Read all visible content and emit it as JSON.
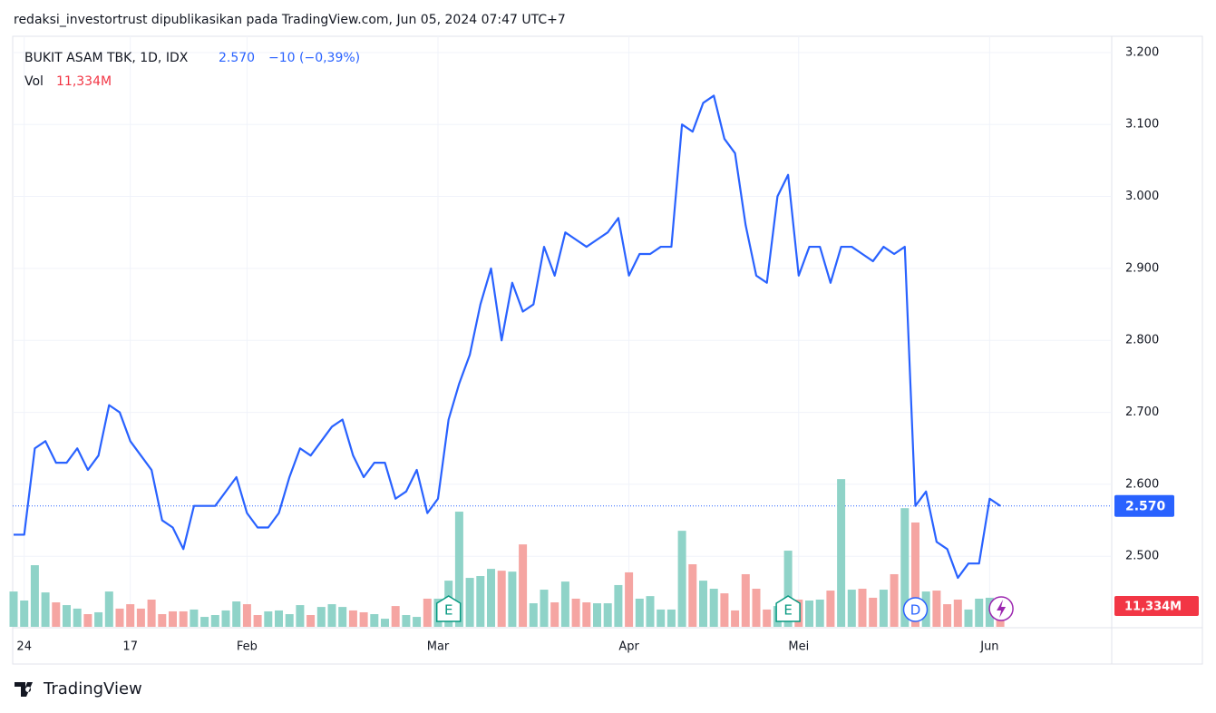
{
  "publisher": "redaksi_investortrust dipublikasikan pada TradingView.com, Jun 05, 2024 07:47 UTC+7",
  "footer": "TradingView",
  "chart_data": {
    "type": "line",
    "categories": [
      null,
      "24",
      null,
      null,
      null,
      null,
      null,
      null,
      null,
      null,
      null,
      "17",
      null,
      null,
      null,
      null,
      null,
      null,
      null,
      null,
      null,
      null,
      "Feb",
      null,
      null,
      null,
      null,
      null,
      null,
      null,
      null,
      null,
      null,
      null,
      null,
      null,
      null,
      null,
      null,
      null,
      "Mar",
      null,
      null,
      null,
      null,
      null,
      null,
      null,
      null,
      null,
      null,
      null,
      null,
      null,
      null,
      null,
      null,
      null,
      "Apr",
      null,
      null,
      null,
      null,
      null,
      null,
      null,
      null,
      null,
      null,
      null,
      null,
      null,
      null,
      null,
      "Mei",
      null,
      null,
      null,
      null,
      null,
      null,
      null,
      null,
      null,
      null,
      null,
      null,
      null,
      null,
      null,
      null,
      null,
      "Jun",
      null
    ],
    "events": [
      null,
      null,
      null,
      null,
      null,
      null,
      null,
      null,
      null,
      null,
      null,
      null,
      null,
      null,
      null,
      null,
      null,
      null,
      null,
      null,
      null,
      null,
      null,
      null,
      null,
      null,
      null,
      null,
      null,
      null,
      null,
      null,
      null,
      null,
      null,
      null,
      null,
      null,
      null,
      null,
      null,
      "E",
      null,
      null,
      null,
      null,
      null,
      null,
      null,
      null,
      null,
      null,
      null,
      null,
      null,
      null,
      null,
      null,
      null,
      null,
      null,
      null,
      null,
      null,
      null,
      null,
      null,
      null,
      null,
      null,
      null,
      null,
      null,
      "E",
      null,
      null,
      null,
      null,
      null,
      null,
      null,
      null,
      null,
      null,
      null,
      "D",
      null,
      null,
      null,
      null,
      null,
      null,
      null,
      null
    ],
    "series": [
      {
        "name": "BUKIT ASAM TBK, 1D, IDX",
        "color": "#2962ff",
        "last_label": "2.570",
        "change": "−10 (−0,39%)",
        "values": [
          2530,
          2530,
          2650,
          2660,
          2630,
          2630,
          2650,
          2620,
          2640,
          2710,
          2700,
          2660,
          2640,
          2620,
          2550,
          2540,
          2510,
          2570,
          2570,
          2570,
          2590,
          2610,
          2560,
          2540,
          2540,
          2560,
          2610,
          2650,
          2640,
          2660,
          2680,
          2690,
          2640,
          2610,
          2630,
          2630,
          2580,
          2590,
          2620,
          2560,
          2580,
          2690,
          2740,
          2780,
          2850,
          2900,
          2800,
          2880,
          2840,
          2850,
          2930,
          2890,
          2950,
          2940,
          2930,
          2940,
          2950,
          2970,
          2890,
          2920,
          2920,
          2930,
          2930,
          3100,
          3090,
          3130,
          3140,
          3080,
          3060,
          2960,
          2890,
          2880,
          3000,
          3030,
          2890,
          2930,
          2930,
          2880,
          2930,
          2930,
          2920,
          2910,
          2930,
          2920,
          2930,
          2570,
          2590,
          2520,
          2510,
          2470,
          2490,
          2490,
          2580,
          2570
        ]
      },
      {
        "name": "Vol",
        "type": "bar",
        "axis": "y2",
        "up_color": "#8fd3c8",
        "down_color": "#f5a5a2",
        "tag_color": "#f23645",
        "last_label": "11,334M",
        "values": [
          19.2,
          14.3,
          33.5,
          18.7,
          13.3,
          11.8,
          9.9,
          6.9,
          7.9,
          19.2,
          9.9,
          12.3,
          9.9,
          14.8,
          6.9,
          8.4,
          8.4,
          9.4,
          5.4,
          6.4,
          8.9,
          13.8,
          12.3,
          6.4,
          8.4,
          8.9,
          6.9,
          11.8,
          6.4,
          10.8,
          12.3,
          10.8,
          8.9,
          7.9,
          6.9,
          4.4,
          11.3,
          6.4,
          5.4,
          15.3,
          15.3,
          25.1,
          62.6,
          26.6,
          27.6,
          31.5,
          30.5,
          30.0,
          44.8,
          12.8,
          20.2,
          13.3,
          24.6,
          15.3,
          13.3,
          12.8,
          12.8,
          22.7,
          29.6,
          15.3,
          16.7,
          9.4,
          9.4,
          52.2,
          34.0,
          25.1,
          20.7,
          18.2,
          8.9,
          28.6,
          20.7,
          9.4,
          11.3,
          41.4,
          14.8,
          14.3,
          14.8,
          19.7,
          80.3,
          20.2,
          20.7,
          15.8,
          20.2,
          28.6,
          64.5,
          56.7,
          19.2,
          19.7,
          12.3,
          14.8,
          9.4,
          15.3,
          15.8,
          11.334
        ]
      }
    ],
    "ylim": [
      2402,
      3220
    ],
    "yticks": [
      {
        "value": 2500,
        "label": "2.500"
      },
      {
        "value": 2600,
        "label": "2.600"
      },
      {
        "value": 2700,
        "label": "2.700"
      },
      {
        "value": 2800,
        "label": "2.800"
      },
      {
        "value": 2900,
        "label": "2.900"
      },
      {
        "value": 3000,
        "label": "3.000"
      },
      {
        "value": 3100,
        "label": "3.100"
      },
      {
        "value": 3200,
        "label": "3.200"
      }
    ],
    "y2lim": [
      0,
      320
    ],
    "grid": true
  }
}
